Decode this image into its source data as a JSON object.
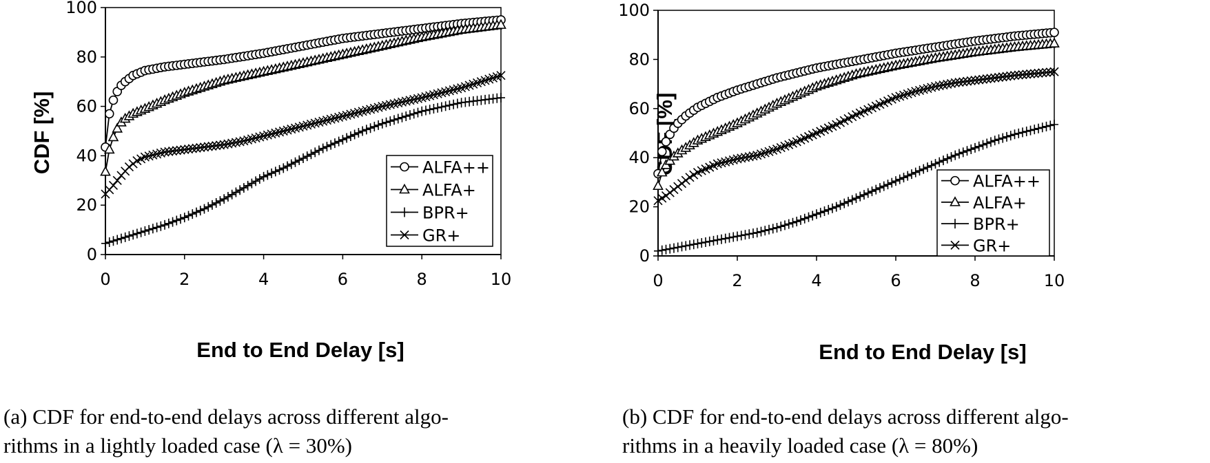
{
  "chart_data": [
    {
      "type": "line",
      "panel": "a",
      "xlabel": "End to End Delay [s]",
      "ylabel": "CDF [%]",
      "xlim": [
        0,
        10
      ],
      "ylim": [
        0,
        100
      ],
      "xticks": [
        "0",
        "2",
        "4",
        "6",
        "8",
        "10"
      ],
      "yticks": [
        "0",
        "20",
        "40",
        "60",
        "80",
        "100"
      ],
      "legend_position": "lower-right",
      "caption_line1": "(a) CDF for end-to-end delays across different algo-",
      "caption_line2": "rithms in a lightly loaded case (λ = 30%)",
      "series": [
        {
          "name": "ALFA++",
          "marker": "circle",
          "points": [
            [
              0,
              43.5
            ],
            [
              0.1,
              57
            ],
            [
              0.2,
              62.5
            ],
            [
              0.3,
              66
            ],
            [
              0.4,
              68.5
            ],
            [
              0.5,
              70
            ],
            [
              0.7,
              72.5
            ],
            [
              1,
              74.5
            ],
            [
              1.5,
              76
            ],
            [
              2,
              77
            ],
            [
              3,
              79
            ],
            [
              4,
              81.5
            ],
            [
              5,
              84.5
            ],
            [
              6,
              87.5
            ],
            [
              7,
              89.5
            ],
            [
              8,
              91.5
            ],
            [
              9,
              93.5
            ],
            [
              10,
              95
            ]
          ]
        },
        {
          "name": "ALFA+",
          "marker": "triangle",
          "points": [
            [
              0,
              33.5
            ],
            [
              0.1,
              42.5
            ],
            [
              0.2,
              47.5
            ],
            [
              0.3,
              51
            ],
            [
              0.4,
              53.5
            ],
            [
              0.5,
              55
            ],
            [
              0.7,
              57
            ],
            [
              1,
              59
            ],
            [
              1.5,
              62.5
            ],
            [
              2,
              65.5
            ],
            [
              3,
              70.5
            ],
            [
              4,
              74
            ],
            [
              5,
              77.5
            ],
            [
              6,
              81
            ],
            [
              7,
              84.5
            ],
            [
              8,
              88
            ],
            [
              9,
              91
            ],
            [
              10,
              93
            ]
          ]
        },
        {
          "name": "BPR+",
          "marker": "plus",
          "points": [
            [
              0,
              4.5
            ],
            [
              0.5,
              7
            ],
            [
              1,
              9.5
            ],
            [
              1.5,
              12
            ],
            [
              2,
              15
            ],
            [
              2.5,
              18.5
            ],
            [
              3,
              22.5
            ],
            [
              3.5,
              27
            ],
            [
              4,
              31.5
            ],
            [
              4.5,
              35
            ],
            [
              5,
              39
            ],
            [
              5.5,
              43
            ],
            [
              6,
              46.5
            ],
            [
              6.5,
              50
            ],
            [
              7,
              53
            ],
            [
              7.5,
              55.5
            ],
            [
              8,
              58
            ],
            [
              9,
              61.5
            ],
            [
              10,
              63.5
            ]
          ]
        },
        {
          "name": "GR+",
          "marker": "x",
          "points": [
            [
              0,
              24.5
            ],
            [
              0.2,
              28
            ],
            [
              0.4,
              32
            ],
            [
              0.6,
              35.5
            ],
            [
              0.8,
              38
            ],
            [
              1,
              39.5
            ],
            [
              1.5,
              41.5
            ],
            [
              2,
              42.5
            ],
            [
              2.5,
              43.5
            ],
            [
              3,
              44.5
            ],
            [
              3.5,
              46
            ],
            [
              4,
              48
            ],
            [
              4.5,
              50
            ],
            [
              5,
              52
            ],
            [
              5.5,
              54
            ],
            [
              6,
              56
            ],
            [
              7,
              60
            ],
            [
              8,
              63.5
            ],
            [
              9,
              67.5
            ],
            [
              10,
              72.5
            ]
          ]
        }
      ]
    },
    {
      "type": "line",
      "panel": "b",
      "xlabel": "End to End Delay [s]",
      "ylabel": "CDF [%]",
      "xlim": [
        0,
        10
      ],
      "ylim": [
        0,
        100
      ],
      "xticks": [
        "0",
        "2",
        "4",
        "6",
        "8",
        "10"
      ],
      "yticks": [
        "0",
        "20",
        "40",
        "60",
        "80",
        "100"
      ],
      "legend_position": "lower-right",
      "caption_line1": "(b) CDF for end-to-end delays across different algo-",
      "caption_line2": "rithms in a heavily loaded case (λ = 80%)",
      "series": [
        {
          "name": "ALFA++",
          "marker": "circle",
          "points": [
            [
              0,
              33.5
            ],
            [
              0.1,
              42.5
            ],
            [
              0.2,
              46.5
            ],
            [
              0.3,
              49.5
            ],
            [
              0.4,
              52
            ],
            [
              0.5,
              54
            ],
            [
              0.7,
              57
            ],
            [
              1,
              60.5
            ],
            [
              1.5,
              64.5
            ],
            [
              2,
              67.5
            ],
            [
              3,
              72.5
            ],
            [
              4,
              76.5
            ],
            [
              5,
              79.5
            ],
            [
              6,
              82.5
            ],
            [
              7,
              85
            ],
            [
              8,
              87.5
            ],
            [
              9,
              89.5
            ],
            [
              10,
              91
            ]
          ]
        },
        {
          "name": "ALFA+",
          "marker": "triangle",
          "points": [
            [
              0,
              28.5
            ],
            [
              0.1,
              34
            ],
            [
              0.2,
              37
            ],
            [
              0.4,
              40.5
            ],
            [
              0.6,
              43
            ],
            [
              0.8,
              45
            ],
            [
              1,
              47
            ],
            [
              1.5,
              50.5
            ],
            [
              2,
              54
            ],
            [
              2.5,
              58
            ],
            [
              3,
              62
            ],
            [
              3.5,
              65.5
            ],
            [
              4,
              69
            ],
            [
              5,
              74
            ],
            [
              6,
              77.5
            ],
            [
              7,
              80.5
            ],
            [
              8,
              83
            ],
            [
              9,
              85
            ],
            [
              10,
              86.5
            ]
          ]
        },
        {
          "name": "BPR+",
          "marker": "plus",
          "points": [
            [
              0,
              2
            ],
            [
              0.5,
              3.5
            ],
            [
              1,
              5
            ],
            [
              1.5,
              6.5
            ],
            [
              2,
              8
            ],
            [
              2.5,
              9.5
            ],
            [
              3,
              11.5
            ],
            [
              3.5,
              14
            ],
            [
              4,
              17
            ],
            [
              4.5,
              20
            ],
            [
              5,
              23.5
            ],
            [
              5.5,
              27
            ],
            [
              6,
              30.5
            ],
            [
              6.5,
              34
            ],
            [
              7,
              37.5
            ],
            [
              7.5,
              41
            ],
            [
              8,
              44
            ],
            [
              8.5,
              47
            ],
            [
              9,
              49.5
            ],
            [
              9.5,
              51.5
            ],
            [
              10,
              53.5
            ]
          ]
        },
        {
          "name": "GR+",
          "marker": "x",
          "points": [
            [
              0,
              22.5
            ],
            [
              0.2,
              24.5
            ],
            [
              0.4,
              27
            ],
            [
              0.6,
              29.5
            ],
            [
              0.8,
              32
            ],
            [
              1,
              34
            ],
            [
              1.5,
              37.5
            ],
            [
              2,
              39.5
            ],
            [
              2.5,
              41
            ],
            [
              3,
              43.5
            ],
            [
              3.5,
              46.5
            ],
            [
              4,
              50
            ],
            [
              4.5,
              53.5
            ],
            [
              5,
              57.5
            ],
            [
              5.5,
              61
            ],
            [
              6,
              64.5
            ],
            [
              6.5,
              67
            ],
            [
              7,
              69
            ],
            [
              7.5,
              70.5
            ],
            [
              8,
              71.5
            ],
            [
              9,
              73.5
            ],
            [
              10,
              75
            ]
          ]
        }
      ]
    }
  ]
}
